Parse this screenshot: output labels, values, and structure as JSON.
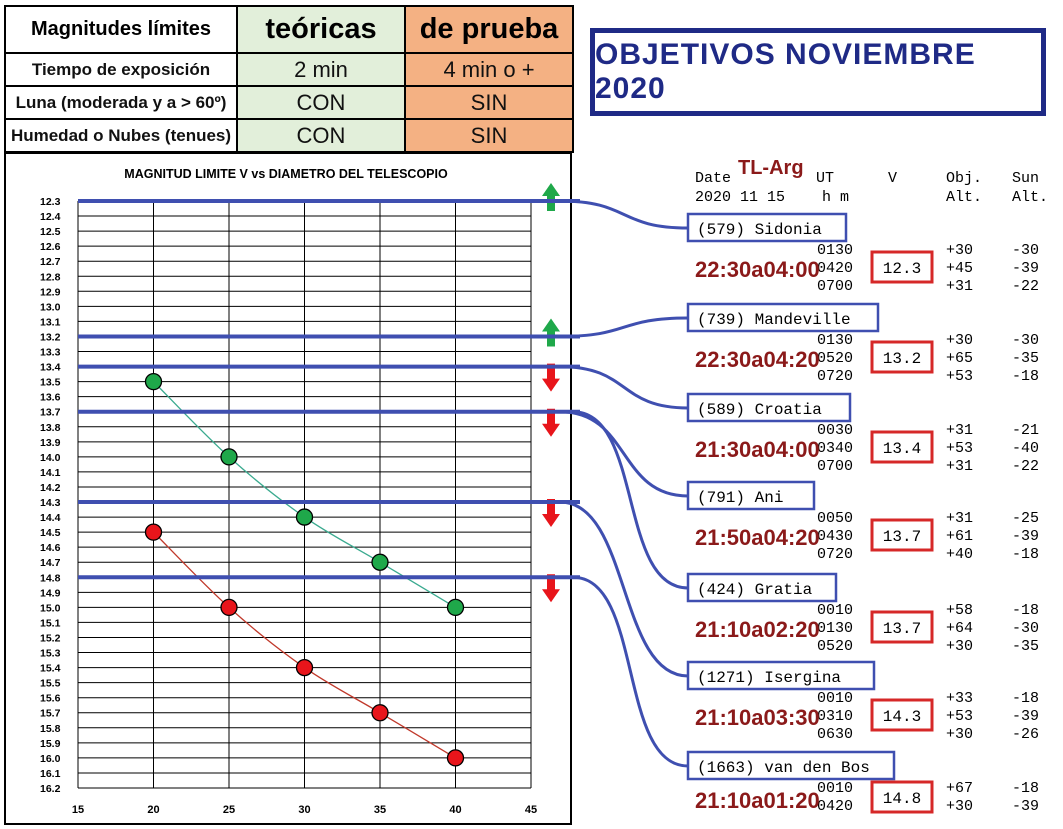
{
  "table": {
    "header": [
      "Magnitudes límites",
      "teóricas",
      "de prueba"
    ],
    "rows": [
      {
        "label": "Tiempo de exposición",
        "teoricas": "2 min",
        "prueba": "4 min o +"
      },
      {
        "label": "Luna (moderada y a > 60º)",
        "teoricas": "CON",
        "prueba": "SIN"
      },
      {
        "label": "Humedad o Nubes (tenues)",
        "teoricas": "CON",
        "prueba": "SIN"
      }
    ]
  },
  "banner": {
    "title": "OBJETIVOS NOVIEMBRE 2020"
  },
  "chart_data": {
    "type": "line",
    "title": "MAGNITUD LIMITE V vs DIAMETRO DEL TELESCOPIO",
    "x_ticks": [
      15,
      20,
      25,
      30,
      35,
      40,
      45
    ],
    "y_ticks": [
      "12.3",
      "12.4",
      "12.5",
      "12.6",
      "12.7",
      "12.8",
      "12.9",
      "13.0",
      "13.1",
      "13.2",
      "13.3",
      "13.4",
      "13.5",
      "13.6",
      "13.7",
      "13.8",
      "13.9",
      "14.0",
      "14.1",
      "14.2",
      "14.3",
      "14.4",
      "14.5",
      "14.6",
      "14.7",
      "14.8",
      "14.9",
      "15.0",
      "15.1",
      "15.2",
      "15.3",
      "15.4",
      "15.5",
      "15.6",
      "15.7",
      "15.8",
      "15.9",
      "16.0",
      "16.1",
      "16.2"
    ],
    "xlim": [
      15,
      45
    ],
    "ylim": [
      12.3,
      16.2
    ],
    "y_inverted": true,
    "grid": true,
    "series": [
      {
        "color": "#1fa84a",
        "line_color": "#3aaa8f",
        "x": [
          20,
          25,
          30,
          35,
          40
        ],
        "values": [
          13.5,
          14.0,
          14.4,
          14.7,
          15.0
        ]
      },
      {
        "color": "#e8151b",
        "line_color": "#c0392b",
        "x": [
          20,
          25,
          30,
          35,
          40
        ],
        "values": [
          14.5,
          15.0,
          15.4,
          15.7,
          16.0
        ]
      }
    ],
    "limit_lines": [
      12.3,
      13.2,
      13.4,
      13.7,
      14.3,
      14.8
    ],
    "arrows": [
      {
        "value": 12.3,
        "direction": "up",
        "color": "#1fa84a"
      },
      {
        "value": 13.2,
        "direction": "up",
        "color": "#1fa84a"
      },
      {
        "value": 13.4,
        "direction": "down",
        "color": "#e8151b"
      },
      {
        "value": 13.7,
        "direction": "down",
        "color": "#e8151b"
      },
      {
        "value": 14.3,
        "direction": "down",
        "color": "#e8151b"
      },
      {
        "value": 14.8,
        "direction": "down",
        "color": "#e8151b"
      }
    ]
  },
  "ephemeris": {
    "site": "TL-Arg",
    "header_line1": [
      "Date",
      "UT",
      "V",
      "Obj.",
      "Sun"
    ],
    "header_line2": [
      "2020 11 15",
      "h m",
      "Alt.",
      "Alt."
    ],
    "objects": [
      {
        "name": "(579) Sidonia",
        "window": "22:30a04:00",
        "mag": "12.3",
        "limit": 12.3,
        "rows": [
          [
            "0130",
            "+30",
            "-30"
          ],
          [
            "0420",
            "+45",
            "-39"
          ],
          [
            "0700",
            "+31",
            "-22"
          ]
        ]
      },
      {
        "name": "(739) Mandeville",
        "window": "22:30a04:20",
        "mag": "13.2",
        "limit": 13.2,
        "rows": [
          [
            "0130",
            "+30",
            "-30"
          ],
          [
            "0520",
            "+65",
            "-35"
          ],
          [
            "0720",
            "+53",
            "-18"
          ]
        ]
      },
      {
        "name": "(589) Croatia",
        "window": "21:30a04:00",
        "mag": "13.4",
        "limit": 13.4,
        "rows": [
          [
            "0030",
            "+31",
            "-21"
          ],
          [
            "0340",
            "+53",
            "-40"
          ],
          [
            "0700",
            "+31",
            "-22"
          ]
        ]
      },
      {
        "name": "(791) Ani",
        "window": "21:50a04:20",
        "mag": "13.7",
        "limit": 13.7,
        "rows": [
          [
            "0050",
            "+31",
            "-25"
          ],
          [
            "0430",
            "+61",
            "-39"
          ],
          [
            "0720",
            "+40",
            "-18"
          ]
        ]
      },
      {
        "name": "(424) Gratia",
        "window": "21:10a02:20",
        "mag": "13.7",
        "limit": 13.7,
        "rows": [
          [
            "0010",
            "+58",
            "-18"
          ],
          [
            "0130",
            "+64",
            "-30"
          ],
          [
            "0520",
            "+30",
            "-35"
          ]
        ]
      },
      {
        "name": "(1271) Isergina",
        "window": "21:10a03:30",
        "mag": "14.3",
        "limit": 14.3,
        "rows": [
          [
            "0010",
            "+33",
            "-18"
          ],
          [
            "0310",
            "+53",
            "-39"
          ],
          [
            "0630",
            "+30",
            "-26"
          ]
        ]
      },
      {
        "name": "(1663) van den Bos",
        "window": "21:10a01:20",
        "mag": "14.8",
        "limit": 14.8,
        "rows": [
          [
            "0010",
            "+67",
            "-18"
          ],
          [
            "0420",
            "+30",
            "-39"
          ]
        ]
      }
    ]
  }
}
